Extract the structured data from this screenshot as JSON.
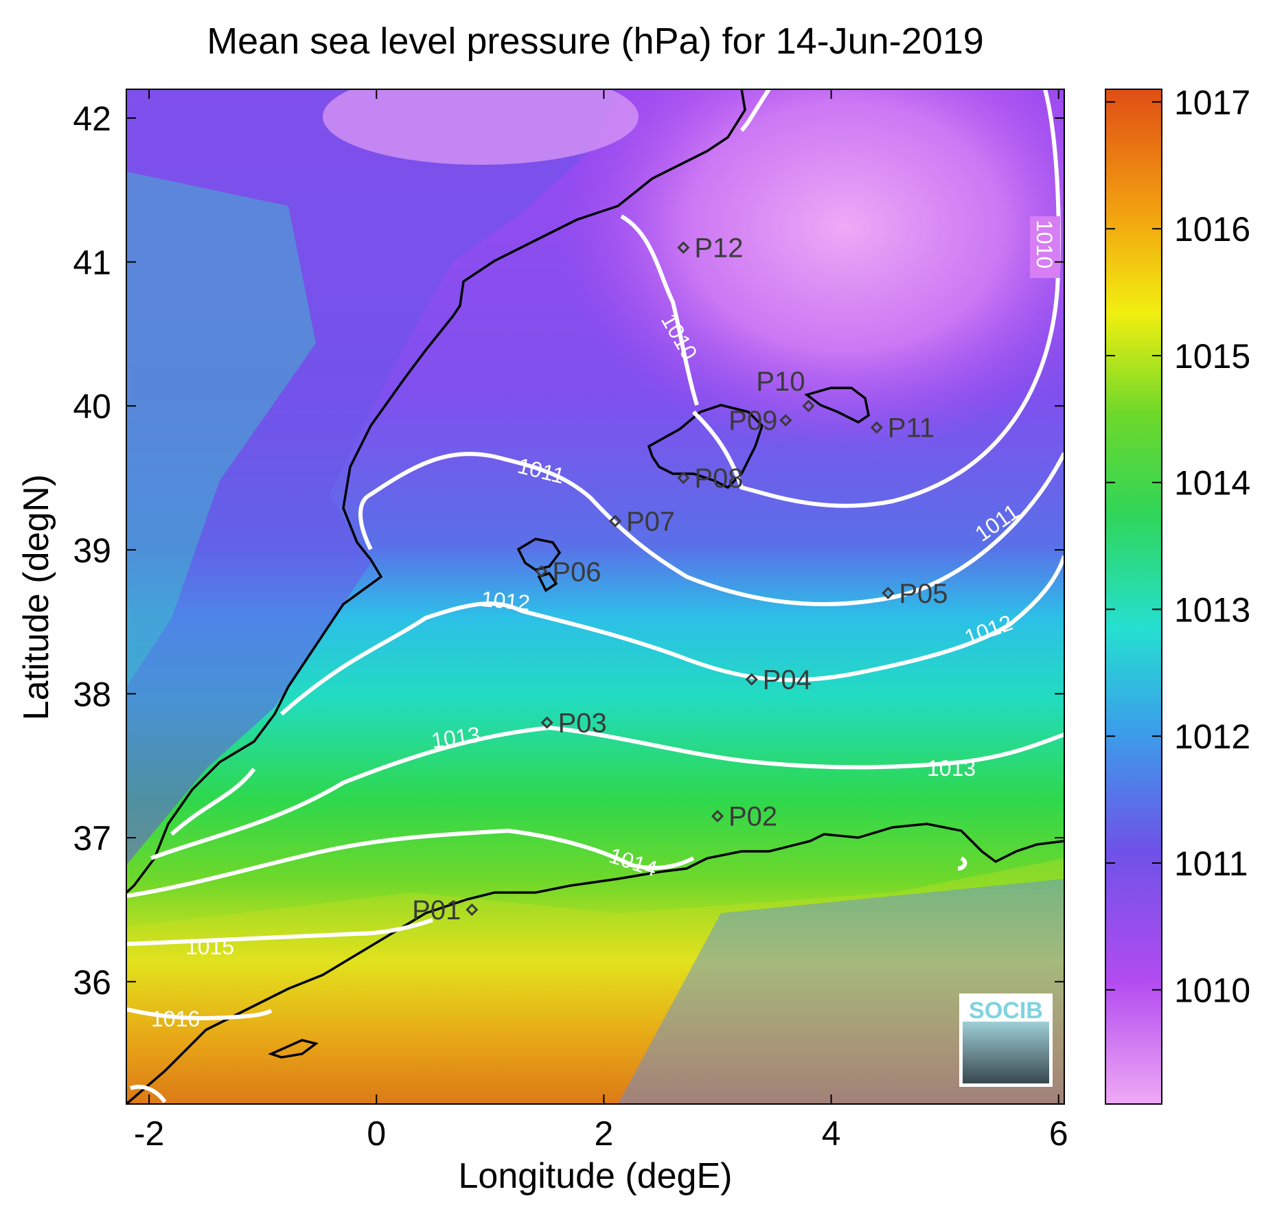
{
  "title": "Mean sea level pressure (hPa) for 14-Jun-2019",
  "x_axis": {
    "label": "Longitude (degE)",
    "ticks": [
      "-2",
      "0",
      "2",
      "4",
      "6"
    ]
  },
  "y_axis": {
    "label": "Latitude (degN)",
    "ticks": [
      "36",
      "37",
      "38",
      "39",
      "40",
      "41",
      "42"
    ]
  },
  "colorbar": {
    "ticks": [
      "1010",
      "1011",
      "1012",
      "1013",
      "1014",
      "1015",
      "1016",
      "1017"
    ],
    "colors": [
      "#efaaf5",
      "#b34cf0",
      "#6f52e8",
      "#2fbbe8",
      "#25d7a8",
      "#39d428",
      "#f2ef10",
      "#f2a010",
      "#e04e15"
    ]
  },
  "contour_labels": [
    "1010",
    "1010",
    "1011",
    "1011",
    "1012",
    "1012",
    "1013",
    "1013",
    "1014",
    "1015",
    "1016"
  ],
  "points": [
    "P01",
    "P02",
    "P03",
    "P04",
    "P05",
    "P06",
    "P07",
    "P08",
    "P09",
    "P10",
    "P11",
    "P12"
  ],
  "logo": {
    "text": "SOCIB"
  },
  "chart_data": {
    "type": "heatmap",
    "title": "Mean sea level pressure (hPa) for 14-Jun-2019",
    "xlabel": "Longitude (degE)",
    "ylabel": "Latitude (degN)",
    "xlim": [
      -2.2,
      6.05
    ],
    "ylim": [
      35.15,
      42.2
    ],
    "colorbar_range": [
      1009.1,
      1017.1
    ],
    "contour_levels": [
      1010,
      1011,
      1012,
      1013,
      1014,
      1015,
      1016
    ],
    "stations": [
      {
        "name": "P01",
        "lon": 0.84,
        "lat": 36.5
      },
      {
        "name": "P02",
        "lon": 3.0,
        "lat": 37.15
      },
      {
        "name": "P03",
        "lon": 1.5,
        "lat": 37.8
      },
      {
        "name": "P04",
        "lon": 3.3,
        "lat": 38.1
      },
      {
        "name": "P05",
        "lon": 4.5,
        "lat": 38.7
      },
      {
        "name": "P06",
        "lon": 1.45,
        "lat": 38.85
      },
      {
        "name": "P07",
        "lon": 2.1,
        "lat": 39.2
      },
      {
        "name": "P08",
        "lon": 2.7,
        "lat": 39.5
      },
      {
        "name": "P09",
        "lon": 3.6,
        "lat": 39.9
      },
      {
        "name": "P10",
        "lon": 3.8,
        "lat": 40.0
      },
      {
        "name": "P11",
        "lon": 4.4,
        "lat": 39.85
      },
      {
        "name": "P12",
        "lon": 2.7,
        "lat": 41.1
      }
    ]
  }
}
